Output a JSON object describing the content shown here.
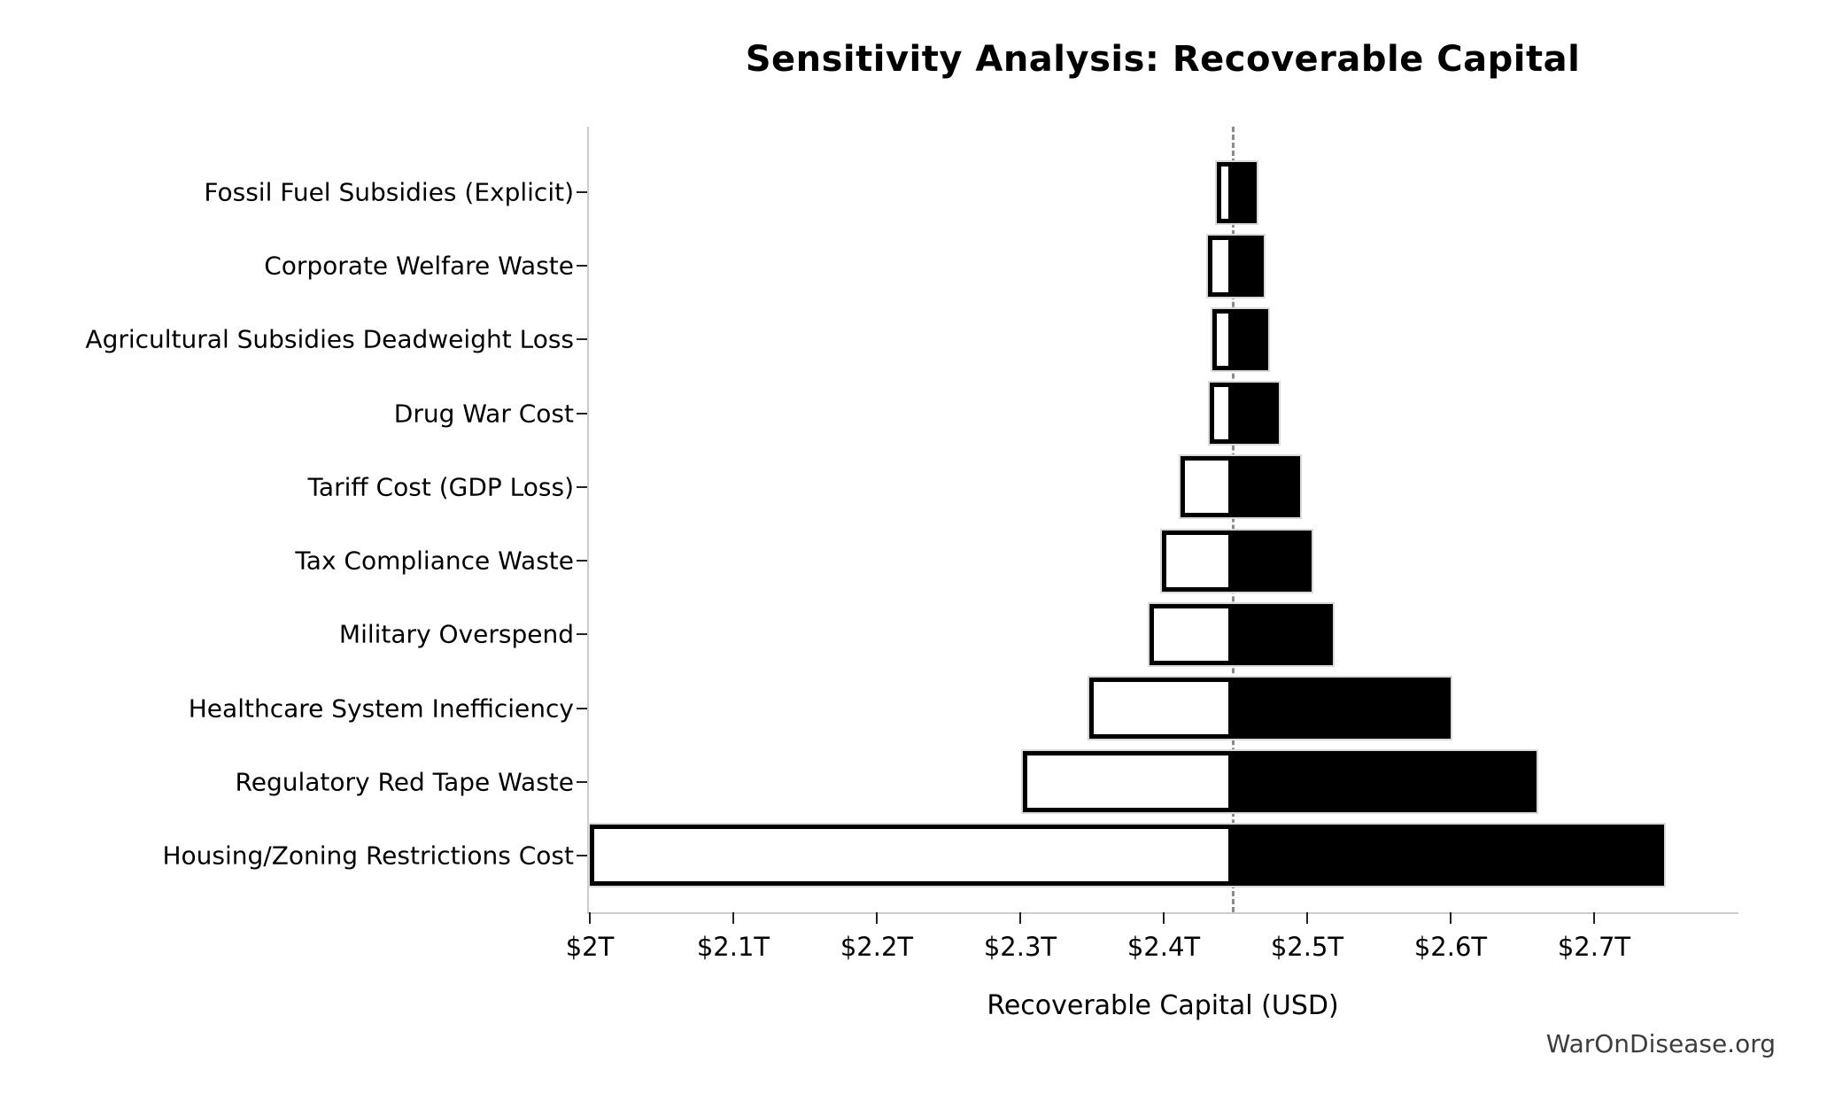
{
  "chart_data": {
    "type": "bar",
    "subtype": "tornado-horizontal",
    "title": "Sensitivity Analysis: Recoverable Capital",
    "xlabel": "Recoverable Capital (USD)",
    "watermark": "WarOnDisease.org",
    "xlim": [
      2.0,
      2.8
    ],
    "baseline_value": 2.448,
    "grid": false,
    "legend": "none",
    "xticks": [
      {
        "value": 2.0,
        "label": "$2T"
      },
      {
        "value": 2.1,
        "label": "$2.1T"
      },
      {
        "value": 2.2,
        "label": "$2.2T"
      },
      {
        "value": 2.3,
        "label": "$2.3T"
      },
      {
        "value": 2.4,
        "label": "$2.4T"
      },
      {
        "value": 2.5,
        "label": "$2.5T"
      },
      {
        "value": 2.6,
        "label": "$2.6T"
      },
      {
        "value": 2.7,
        "label": "$2.7T"
      }
    ],
    "unit": "trillion USD",
    "rows": [
      {
        "label": "Fossil Fuel Subsidies (Explicit)",
        "low": 2.437,
        "high": 2.465
      },
      {
        "label": "Corporate Welfare Waste",
        "low": 2.431,
        "high": 2.47
      },
      {
        "label": "Agricultural Subsidies Deadweight Loss",
        "low": 2.434,
        "high": 2.473
      },
      {
        "label": "Drug War Cost",
        "low": 2.432,
        "high": 2.48
      },
      {
        "label": "Tariff Cost (GDP Loss)",
        "low": 2.412,
        "high": 2.495
      },
      {
        "label": "Tax Compliance Waste",
        "low": 2.399,
        "high": 2.503
      },
      {
        "label": "Military Overspend",
        "low": 2.39,
        "high": 2.518
      },
      {
        "label": "Healthcare System Inefficiency",
        "low": 2.348,
        "high": 2.6
      },
      {
        "label": "Regulatory Red Tape Waste",
        "low": 2.302,
        "high": 2.66
      },
      {
        "label": "Housing/Zoning Restrictions Cost",
        "low": 2.0,
        "high": 2.749
      }
    ],
    "colors": {
      "high_fill": "#000000",
      "low_fill": "#ffffff",
      "bar_edge": "#000000",
      "bar_outline": "#d9d9d9",
      "baseline_line": "#8a8a8a",
      "spine": "#cccccc",
      "text": "#000000",
      "watermark": "#3d3d3d"
    }
  }
}
